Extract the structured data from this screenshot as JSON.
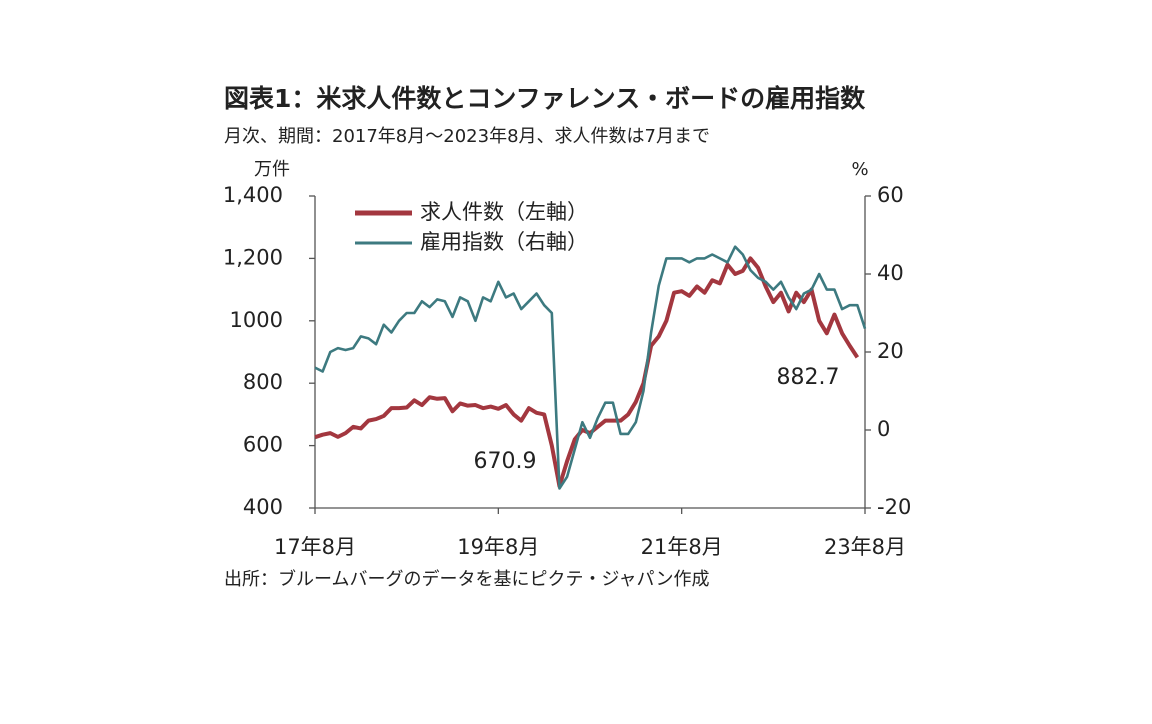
{
  "chart_data": {
    "type": "line",
    "title": "図表1：米求人件数とコンファレンス・ボードの雇用指数",
    "subtitle": "月次、期間：2017年8月～2023年8月、求人件数は7月まで",
    "y_label": "万件",
    "y2_label": "%",
    "source": "出所：ブルームバーグのデータを基にピクテ・ジャパン作成",
    "annotations": [
      "670.9",
      "882.7"
    ],
    "categories": [
      "17年8月",
      null,
      null,
      null,
      null,
      null,
      null,
      null,
      null,
      null,
      null,
      null,
      null,
      null,
      null,
      null,
      null,
      null,
      null,
      null,
      null,
      null,
      null,
      null,
      "19年8月",
      null,
      null,
      null,
      null,
      null,
      null,
      null,
      null,
      null,
      null,
      null,
      null,
      null,
      null,
      null,
      null,
      null,
      null,
      null,
      null,
      null,
      null,
      null,
      "21年8月",
      null,
      null,
      null,
      null,
      null,
      null,
      null,
      null,
      null,
      null,
      null,
      null,
      null,
      null,
      null,
      null,
      null,
      null,
      null,
      null,
      null,
      null,
      null,
      "23年8月"
    ],
    "ylim": [
      400,
      1400
    ],
    "yticks": [
      400,
      600,
      800,
      1000,
      {
        "value": 1200,
        "label": "1,200"
      },
      {
        "value": 1400,
        "label": "1,400"
      }
    ],
    "y2lim": [
      -20,
      60
    ],
    "y2ticks": [
      -20,
      0,
      20,
      40,
      60
    ],
    "legend": "upper-left",
    "series": [
      {
        "name": "求人件数（左軸）",
        "color": "#a3373f",
        "values": [
          627,
          635,
          640,
          628,
          640,
          660,
          655,
          680,
          685,
          695,
          720,
          720,
          722,
          745,
          730,
          755,
          750,
          752,
          710,
          735,
          728,
          730,
          720,
          725,
          718,
          730,
          700,
          680,
          720,
          705,
          700,
          600,
          470,
          550,
          620,
          650,
          640,
          660,
          680,
          680,
          680,
          700,
          740,
          800,
          920,
          950,
          1000,
          1090,
          1095,
          1080,
          1110,
          1090,
          1130,
          1120,
          1180,
          1150,
          1160,
          1200,
          1170,
          1110,
          1060,
          1090,
          1030,
          1090,
          1060,
          1100,
          1000,
          960,
          1020,
          960,
          920,
          882.7,
          null
        ]
      },
      {
        "name": "雇用指数（右軸）",
        "color": "#3d7a80",
        "axis": "y2",
        "values": [
          16,
          15,
          20,
          21,
          20.5,
          21,
          24,
          23.5,
          22,
          27,
          25,
          28,
          30,
          30,
          33,
          31.5,
          33.5,
          33,
          29,
          34,
          33,
          28,
          34,
          33,
          38,
          34,
          35,
          31,
          33,
          35,
          32,
          30,
          -15,
          -12,
          -5,
          2,
          -2,
          3,
          7,
          7,
          -1,
          -1,
          2,
          10,
          25,
          37,
          44,
          44,
          44,
          43,
          44,
          44,
          45,
          44,
          43,
          47,
          45,
          41,
          39,
          38,
          36,
          38,
          34,
          31,
          35,
          36,
          40,
          36,
          36,
          31,
          32,
          32,
          26
        ]
      }
    ]
  }
}
